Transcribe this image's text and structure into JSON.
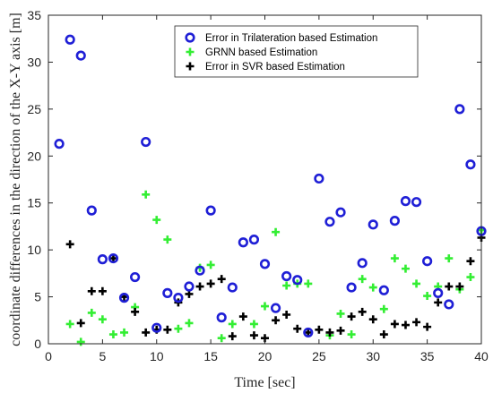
{
  "chart_data": {
    "type": "scatter",
    "title": "",
    "xlabel": "Time [sec]",
    "ylabel": "coordinate differences in the direction of the X-Y axis [m]",
    "xlim": [
      0,
      40
    ],
    "ylim": [
      0,
      35
    ],
    "xticks": [
      "0",
      "5",
      "10",
      "15",
      "20",
      "25",
      "30",
      "35",
      "40"
    ],
    "yticks": [
      "0",
      "5",
      "10",
      "15",
      "20",
      "25",
      "30",
      "35"
    ],
    "grid": false,
    "legend_position": "top-right",
    "colors": {
      "trilateration": "#1f1fd6",
      "grnn": "#33ee33",
      "svr": "#000000"
    },
    "x": [
      1,
      2,
      3,
      4,
      5,
      6,
      7,
      8,
      9,
      10,
      11,
      12,
      13,
      14,
      15,
      16,
      17,
      18,
      19,
      20,
      21,
      22,
      23,
      24,
      25,
      26,
      27,
      28,
      29,
      30,
      31,
      32,
      33,
      34,
      35,
      36,
      37,
      38,
      39,
      40
    ],
    "series": [
      {
        "name": "Error in Trilateration based Estimation",
        "marker": "circle",
        "values": [
          21.3,
          32.4,
          30.7,
          14.2,
          9.0,
          9.1,
          4.9,
          7.1,
          21.5,
          1.7,
          5.4,
          4.9,
          6.1,
          7.8,
          14.2,
          2.8,
          6.0,
          10.8,
          11.1,
          8.5,
          3.8,
          7.2,
          6.8,
          1.2,
          17.6,
          13.0,
          14.0,
          6.0,
          8.6,
          12.7,
          5.7,
          13.1,
          15.2,
          15.1,
          8.8,
          5.4,
          4.2,
          25.0,
          19.1,
          12.0
        ]
      },
      {
        "name": "GRNN based Estimation",
        "marker": "plus",
        "values": [
          null,
          2.1,
          0.2,
          3.3,
          2.6,
          1.0,
          1.2,
          3.9,
          15.9,
          13.2,
          11.1,
          1.6,
          2.2,
          8.1,
          8.4,
          0.6,
          2.1,
          null,
          2.1,
          4.0,
          11.9,
          6.2,
          6.4,
          6.4,
          null,
          0.9,
          3.2,
          1.0,
          6.9,
          6.0,
          3.7,
          9.1,
          8.0,
          6.4,
          5.1,
          6.1,
          9.1,
          5.8,
          7.1,
          12.1
        ]
      },
      {
        "name": "Error in SVR based Estimation",
        "marker": "plus",
        "values": [
          null,
          10.6,
          2.2,
          5.6,
          5.6,
          9.1,
          5.0,
          3.4,
          1.2,
          1.5,
          1.5,
          4.4,
          5.3,
          6.1,
          6.4,
          6.9,
          0.8,
          2.9,
          0.9,
          0.6,
          2.5,
          3.1,
          1.6,
          1.2,
          1.5,
          1.2,
          1.4,
          2.9,
          3.4,
          2.6,
          1.0,
          2.1,
          2.0,
          2.3,
          1.8,
          4.4,
          6.1,
          6.1,
          8.8,
          11.3
        ]
      }
    ]
  }
}
